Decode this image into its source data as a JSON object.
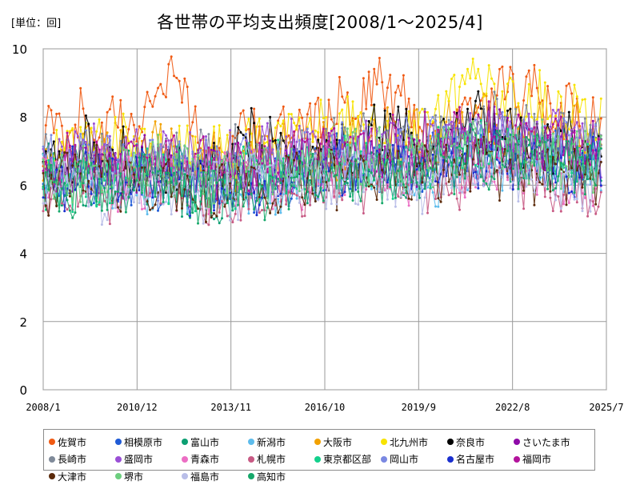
{
  "unit_label": "[単位：回]",
  "chart_data": {
    "type": "line",
    "title": "各世帯の平均支出頻度[2008/1～2025/4]",
    "xlabel": "",
    "ylabel": "",
    "x_range": [
      "2008/1",
      "2025/7"
    ],
    "x_ticks": [
      "2008/1",
      "2010/12",
      "2013/11",
      "2016/10",
      "2019/9",
      "2022/8",
      "2025/7"
    ],
    "ylim": [
      0,
      10
    ],
    "y_ticks": [
      0,
      2,
      4,
      6,
      8,
      10
    ],
    "grid": true,
    "legend_position": "bottom",
    "series": [
      {
        "name": "佐賀市",
        "color": "#f05a13",
        "values": [
          7.3,
          8.0,
          7.5,
          9.5,
          6.5,
          7.6,
          7.5,
          8.3,
          9.0,
          7.5,
          8.0,
          8.8,
          8.2,
          7.6
        ]
      },
      {
        "name": "相模原市",
        "color": "#1f5bd6",
        "values": [
          6.1,
          6.4,
          6.2,
          6.3,
          6.0,
          6.2,
          6.4,
          6.8,
          6.6,
          6.7,
          7.0,
          7.2,
          7.0,
          6.8
        ]
      },
      {
        "name": "富山市",
        "color": "#0c9f72",
        "values": [
          6.5,
          6.0,
          6.3,
          6.1,
          5.8,
          6.0,
          6.2,
          6.5,
          6.3,
          6.4,
          7.0,
          6.9,
          6.8,
          6.5
        ]
      },
      {
        "name": "新潟市",
        "color": "#5dbcec",
        "values": [
          6.2,
          6.1,
          6.3,
          6.0,
          5.9,
          6.2,
          6.1,
          6.4,
          6.5,
          6.3,
          6.8,
          6.7,
          6.6,
          6.4
        ]
      },
      {
        "name": "大阪市",
        "color": "#f2a100",
        "values": [
          6.8,
          7.0,
          6.9,
          7.1,
          6.6,
          6.8,
          7.0,
          7.2,
          7.3,
          7.2,
          7.8,
          7.6,
          7.5,
          7.3
        ]
      },
      {
        "name": "北九州市",
        "color": "#f7e300",
        "values": [
          6.9,
          7.4,
          7.1,
          7.0,
          6.8,
          7.3,
          7.5,
          7.8,
          7.4,
          7.6,
          9.2,
          8.5,
          8.3,
          7.9
        ]
      },
      {
        "name": "奈良市",
        "color": "#000000",
        "values": [
          6.3,
          7.2,
          6.8,
          6.5,
          6.4,
          7.5,
          6.6,
          7.0,
          7.8,
          7.0,
          8.0,
          7.5,
          7.2,
          6.9
        ]
      },
      {
        "name": "さいたま市",
        "color": "#8e0aa8",
        "values": [
          6.4,
          6.6,
          6.5,
          6.7,
          6.2,
          6.5,
          6.7,
          6.9,
          6.8,
          7.0,
          7.5,
          7.3,
          7.1,
          6.9
        ]
      },
      {
        "name": "長崎市",
        "color": "#7f8a99",
        "values": [
          6.6,
          6.9,
          6.7,
          6.6,
          6.7,
          7.0,
          6.8,
          7.1,
          7.2,
          7.3,
          7.8,
          7.6,
          7.4,
          7.2
        ]
      },
      {
        "name": "盛岡市",
        "color": "#9a4fd6",
        "values": [
          6.7,
          7.1,
          6.9,
          7.0,
          6.5,
          6.9,
          7.0,
          7.2,
          7.0,
          7.1,
          7.6,
          7.4,
          7.3,
          7.1
        ]
      },
      {
        "name": "青森市",
        "color": "#ec6ec4",
        "values": [
          6.2,
          6.4,
          6.0,
          6.3,
          5.9,
          6.1,
          6.2,
          6.5,
          6.3,
          6.2,
          6.6,
          6.4,
          6.2,
          6.1
        ]
      },
      {
        "name": "札幌市",
        "color": "#c85a84",
        "values": [
          5.9,
          6.0,
          5.8,
          6.1,
          5.6,
          5.9,
          6.0,
          6.2,
          6.1,
          6.0,
          6.4,
          6.3,
          6.1,
          6.0
        ]
      },
      {
        "name": "東京都区部",
        "color": "#13d08c",
        "values": [
          6.0,
          6.2,
          6.1,
          6.4,
          6.0,
          6.3,
          6.5,
          6.7,
          6.6,
          6.8,
          7.1,
          7.0,
          6.9,
          6.7
        ]
      },
      {
        "name": "岡山市",
        "color": "#7a88e2",
        "values": [
          6.5,
          6.8,
          6.6,
          6.7,
          6.3,
          6.6,
          6.8,
          7.0,
          6.9,
          7.0,
          7.4,
          7.2,
          7.1,
          6.9
        ]
      },
      {
        "name": "名古屋市",
        "color": "#1a2fcf",
        "values": [
          6.0,
          6.3,
          6.1,
          6.2,
          5.9,
          6.1,
          6.3,
          6.5,
          6.4,
          6.5,
          6.9,
          6.8,
          6.6,
          6.5
        ]
      },
      {
        "name": "福岡市",
        "color": "#b3139c",
        "values": [
          6.4,
          6.7,
          6.5,
          6.9,
          6.3,
          6.6,
          6.9,
          7.1,
          7.0,
          7.2,
          7.6,
          7.4,
          7.3,
          7.1
        ]
      },
      {
        "name": "大津市",
        "color": "#5b2a0a",
        "values": [
          6.1,
          6.2,
          6.0,
          6.2,
          5.7,
          6.0,
          6.1,
          6.3,
          6.4,
          6.3,
          6.7,
          6.5,
          6.3,
          6.2
        ]
      },
      {
        "name": "堺市",
        "color": "#6dcf7f",
        "values": [
          6.2,
          6.5,
          6.3,
          6.5,
          6.1,
          6.4,
          6.6,
          6.8,
          6.7,
          6.8,
          7.2,
          7.0,
          6.9,
          6.8
        ]
      },
      {
        "name": "福島市",
        "color": "#b9bee8",
        "values": [
          6.0,
          5.9,
          5.8,
          6.0,
          5.8,
          6.0,
          6.1,
          6.3,
          6.2,
          6.1,
          6.5,
          6.3,
          6.2,
          6.1
        ]
      },
      {
        "name": "高知市",
        "color": "#16a86a",
        "values": [
          5.8,
          5.9,
          6.0,
          6.1,
          5.7,
          5.9,
          6.1,
          6.3,
          6.2,
          6.4,
          6.8,
          6.7,
          6.6,
          6.5
        ]
      }
    ]
  }
}
